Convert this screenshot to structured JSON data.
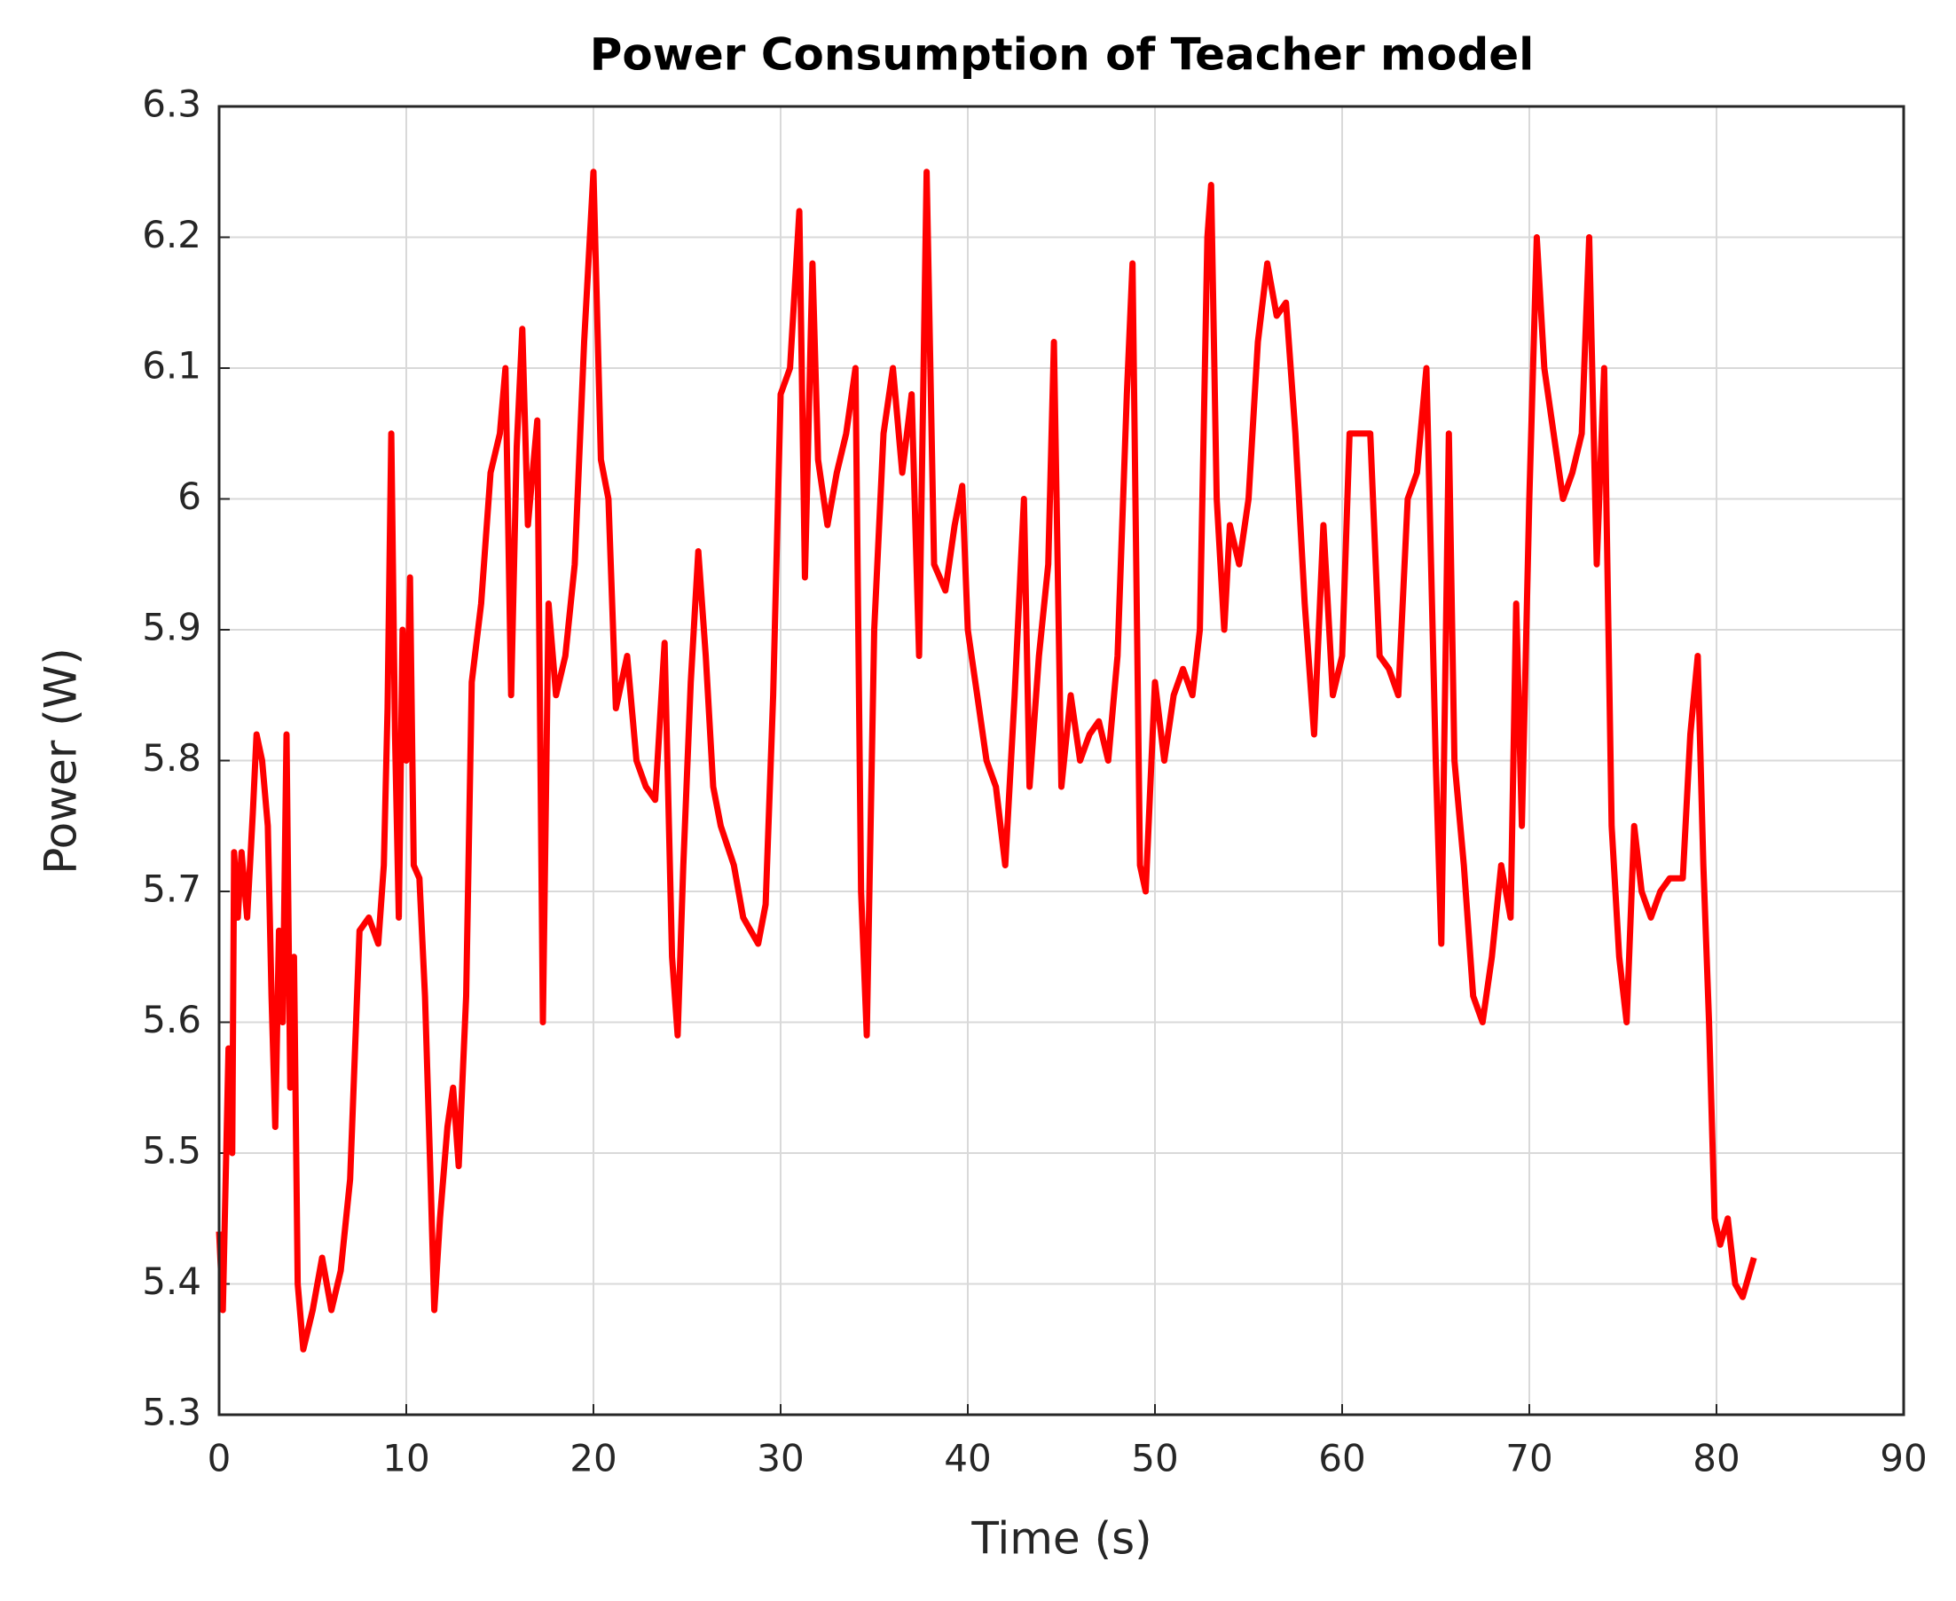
{
  "chart_data": {
    "type": "line",
    "title": "Power Consumption of Teacher model",
    "x_label": "Time (s)",
    "y_label": "Power (W)",
    "x": [
      0,
      0.2,
      0.5,
      0.7,
      0.8,
      1,
      1.2,
      1.5,
      1.8,
      2,
      2.3,
      2.6,
      2.8,
      3,
      3.2,
      3.4,
      3.6,
      3.8,
      4,
      4.2,
      4.5,
      5,
      5.5,
      6,
      6.5,
      7,
      7.5,
      8,
      8.5,
      8.8,
      9,
      9.2,
      9.4,
      9.6,
      9.8,
      10,
      10.2,
      10.4,
      10.7,
      11,
      11.3,
      11.5,
      11.8,
      12.2,
      12.5,
      12.8,
      13.2,
      13.5,
      14,
      14.5,
      15,
      15.3,
      15.6,
      15.9,
      16.2,
      16.5,
      17,
      17.3,
      17.6,
      18,
      18.5,
      19,
      19.5,
      20,
      20.4,
      20.8,
      21.2,
      21.8,
      22.3,
      22.8,
      23.3,
      23.8,
      24.2,
      24.5,
      24.8,
      25.2,
      25.6,
      26,
      26.4,
      26.8,
      27.5,
      28,
      28.8,
      29.2,
      29.6,
      30,
      30.5,
      31,
      31.3,
      31.7,
      32,
      32.5,
      33,
      33.5,
      34,
      34.3,
      34.6,
      35,
      35.5,
      36,
      36.5,
      37,
      37.4,
      37.8,
      38.2,
      38.8,
      39.3,
      39.7,
      40,
      40.5,
      41,
      41.5,
      42,
      42.5,
      43,
      43.3,
      43.8,
      44.3,
      44.6,
      45,
      45.5,
      46,
      46.5,
      47,
      47.5,
      48,
      48.5,
      48.8,
      49.2,
      49.5,
      50,
      50.5,
      51,
      51.5,
      52,
      52.4,
      52.8,
      53,
      53.3,
      53.7,
      54,
      54.5,
      55,
      55.5,
      56,
      56.5,
      57,
      57.5,
      58,
      58.5,
      59,
      59.5,
      60,
      60.4,
      61,
      61.5,
      62,
      62.5,
      63,
      63.5,
      64,
      64.5,
      65,
      65.3,
      65.7,
      66,
      66.5,
      67,
      67.5,
      68,
      68.5,
      69,
      69.3,
      69.6,
      70,
      70.4,
      70.8,
      71.3,
      71.8,
      72.3,
      72.8,
      73.2,
      73.6,
      74,
      74.4,
      74.8,
      75.2,
      75.6,
      76,
      76.5,
      77,
      77.5,
      78.2,
      78.6,
      79,
      79.3,
      79.6,
      79.9,
      80.2,
      80.6,
      81,
      81.4,
      81.8,
      82
    ],
    "values": [
      5.44,
      5.38,
      5.58,
      5.5,
      5.73,
      5.68,
      5.73,
      5.68,
      5.76,
      5.82,
      5.8,
      5.75,
      5.62,
      5.52,
      5.67,
      5.6,
      5.82,
      5.55,
      5.65,
      5.4,
      5.35,
      5.38,
      5.42,
      5.38,
      5.41,
      5.48,
      5.67,
      5.68,
      5.66,
      5.72,
      5.84,
      6.05,
      5.82,
      5.68,
      5.9,
      5.8,
      5.94,
      5.72,
      5.71,
      5.62,
      5.48,
      5.38,
      5.45,
      5.52,
      5.55,
      5.49,
      5.62,
      5.86,
      5.92,
      6.02,
      6.05,
      6.1,
      5.85,
      6.04,
      6.13,
      5.98,
      6.06,
      5.6,
      5.92,
      5.85,
      5.88,
      5.95,
      6.12,
      6.25,
      6.03,
      6.0,
      5.84,
      5.88,
      5.8,
      5.78,
      5.77,
      5.89,
      5.65,
      5.59,
      5.72,
      5.86,
      5.96,
      5.88,
      5.78,
      5.75,
      5.72,
      5.68,
      5.66,
      5.69,
      5.85,
      6.08,
      6.1,
      6.22,
      5.94,
      6.18,
      6.03,
      5.98,
      6.02,
      6.05,
      6.1,
      5.7,
      5.59,
      5.9,
      6.05,
      6.1,
      6.02,
      6.08,
      5.88,
      6.25,
      5.95,
      5.93,
      5.98,
      6.01,
      5.9,
      5.85,
      5.8,
      5.78,
      5.72,
      5.85,
      6.0,
      5.78,
      5.88,
      5.95,
      6.12,
      5.78,
      5.85,
      5.8,
      5.82,
      5.83,
      5.8,
      5.88,
      6.08,
      6.18,
      5.72,
      5.7,
      5.86,
      5.8,
      5.85,
      5.87,
      5.85,
      5.9,
      6.2,
      6.24,
      6.0,
      5.9,
      5.98,
      5.95,
      6.0,
      6.12,
      6.18,
      6.14,
      6.15,
      6.05,
      5.92,
      5.82,
      5.98,
      5.85,
      5.88,
      6.05,
      6.05,
      6.05,
      5.88,
      5.87,
      5.85,
      6.0,
      6.02,
      6.1,
      5.8,
      5.66,
      6.05,
      5.8,
      5.72,
      5.62,
      5.6,
      5.65,
      5.72,
      5.68,
      5.92,
      5.75,
      6.0,
      6.2,
      6.1,
      6.05,
      6.0,
      6.02,
      6.05,
      6.2,
      5.95,
      6.1,
      5.75,
      5.65,
      5.6,
      5.75,
      5.7,
      5.68,
      5.7,
      5.71,
      5.71,
      5.82,
      5.88,
      5.72,
      5.6,
      5.45,
      5.43,
      5.45,
      5.4,
      5.39,
      5.41,
      5.42
    ],
    "color": "#ff0000",
    "xlim": [
      0,
      90
    ],
    "xticks": [
      0,
      10,
      20,
      30,
      40,
      50,
      60,
      70,
      80,
      90
    ],
    "ylim": [
      5.3,
      6.3
    ],
    "yticks": [
      5.3,
      5.4,
      5.5,
      5.6,
      5.7,
      5.8,
      5.9,
      6,
      6.1,
      6.2,
      6.3
    ],
    "grid": true
  }
}
